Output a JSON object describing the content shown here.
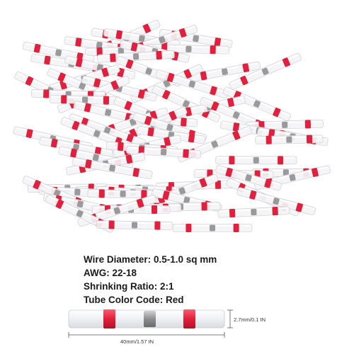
{
  "specs": {
    "wire_diameter_label": "Wire Diameter:",
    "wire_diameter_value": "0.5-1.0 sq mm",
    "awg_label": "AWG:",
    "awg_value": "22-18",
    "shrinking_ratio_label": "Shrinking Ratio:",
    "shrinking_ratio_value": "2:1",
    "tube_color_label": "Tube Color Code:",
    "tube_color_value": "Red"
  },
  "dimensions": {
    "length": "40mm/1.57 IN",
    "diameter": "2.7mm/0.1 IN"
  },
  "colors": {
    "band": "#e0203c",
    "solder": "#9a9a9a",
    "tube": "#f4f4f6"
  }
}
